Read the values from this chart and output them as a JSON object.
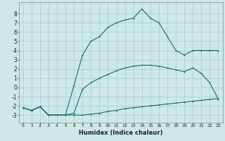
{
  "xlabel": "Humidex (Indice chaleur)",
  "bg_color": "#cce8e8",
  "grid_color": "#aacccc",
  "line_color": "#1a6b6b",
  "xlim": [
    -0.5,
    23.5
  ],
  "ylim": [
    -3.8,
    9.2
  ],
  "yticks": [
    -3,
    -2,
    -1,
    0,
    1,
    2,
    3,
    4,
    5,
    6,
    7,
    8
  ],
  "xticks": [
    0,
    1,
    2,
    3,
    4,
    5,
    6,
    7,
    8,
    9,
    10,
    11,
    12,
    13,
    14,
    15,
    16,
    17,
    18,
    19,
    20,
    21,
    22,
    23
  ],
  "line1_x": [
    0,
    1,
    2,
    3,
    4,
    5,
    6,
    7,
    8,
    9,
    10,
    11,
    12,
    13,
    14,
    15,
    16,
    17,
    18,
    19,
    20,
    21,
    22,
    23
  ],
  "line1_y": [
    -2.2,
    -2.5,
    -2.1,
    -3.0,
    -3.0,
    -3.0,
    -3.0,
    -3.0,
    -2.9,
    -2.8,
    -2.6,
    -2.5,
    -2.3,
    -2.2,
    -2.1,
    -2.0,
    -1.9,
    -1.8,
    -1.7,
    -1.6,
    -1.5,
    -1.4,
    -1.3,
    -1.2
  ],
  "line2_x": [
    0,
    1,
    2,
    3,
    4,
    5,
    6,
    7,
    8,
    9,
    10,
    11,
    12,
    13,
    14,
    15,
    16,
    17,
    18,
    19,
    20,
    21,
    22,
    23
  ],
  "line2_y": [
    -2.2,
    -2.5,
    -2.1,
    -3.0,
    -3.0,
    -3.0,
    -2.8,
    -0.2,
    0.5,
    1.0,
    1.4,
    1.8,
    2.1,
    2.3,
    2.4,
    2.4,
    2.3,
    2.1,
    1.9,
    1.7,
    2.1,
    1.5,
    0.5,
    -1.3
  ],
  "line3_x": [
    0,
    1,
    2,
    3,
    4,
    5,
    6,
    7,
    8,
    9,
    10,
    11,
    12,
    13,
    14,
    15,
    16,
    17,
    18,
    19,
    20,
    21,
    22,
    23
  ],
  "line3_y": [
    -2.2,
    -2.5,
    -2.1,
    -3.0,
    -3.0,
    -3.0,
    0.2,
    3.5,
    5.0,
    5.5,
    6.5,
    7.0,
    7.3,
    7.5,
    8.5,
    7.5,
    7.0,
    5.5,
    4.0,
    3.5,
    4.0,
    4.0,
    4.0,
    4.0
  ]
}
